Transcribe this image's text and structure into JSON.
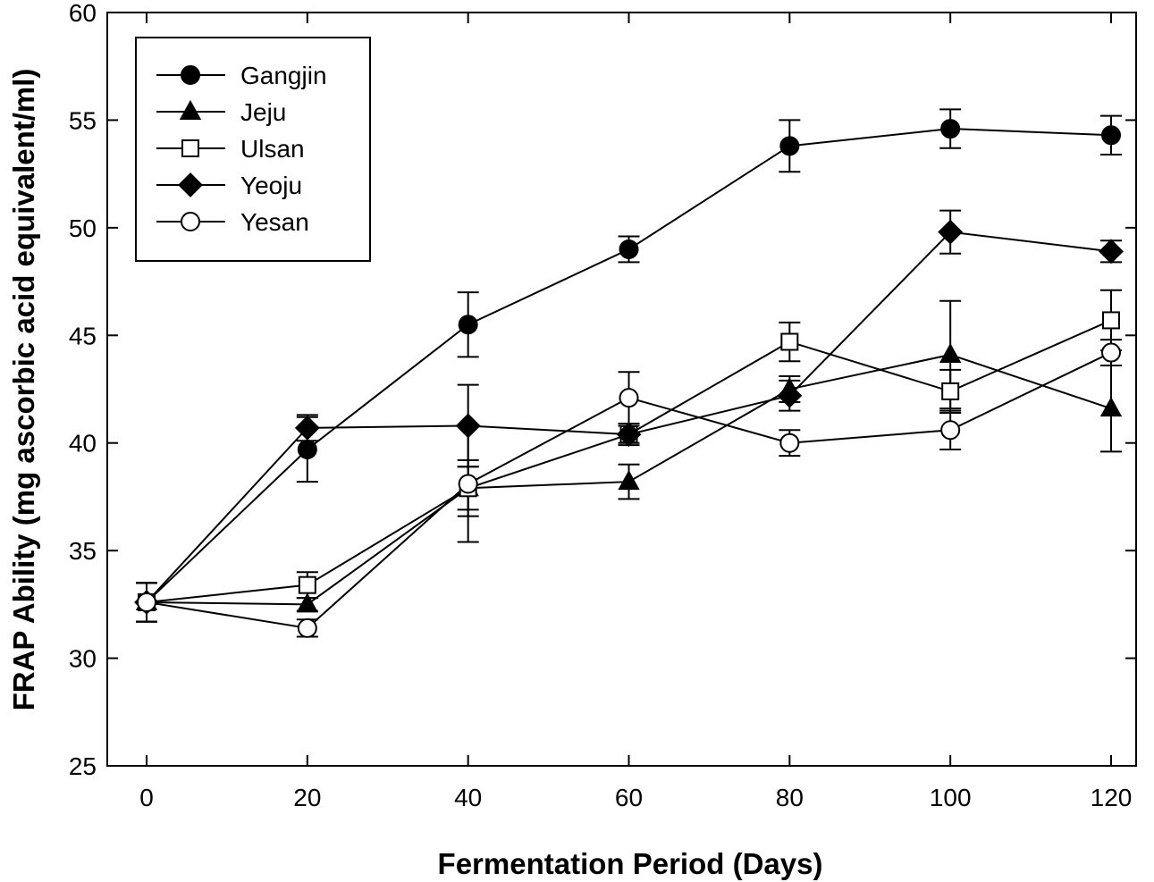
{
  "chart_data": {
    "type": "line",
    "title": "",
    "xlabel": "Fermentation Period (Days)",
    "ylabel": "FRAP Ability (mg ascorbic acid equivalent/ml)",
    "xlim": [
      -6,
      124
    ],
    "ylim": [
      25,
      60
    ],
    "xticks": [
      0,
      20,
      40,
      60,
      80,
      100,
      120
    ],
    "xtick_labels": [
      "0",
      "20",
      "40",
      "60",
      "80",
      "100",
      "120"
    ],
    "yticks": [
      25,
      30,
      35,
      40,
      45,
      50,
      55,
      60
    ],
    "ytick_labels": [
      "25",
      "30",
      "35",
      "40",
      "45",
      "50",
      "55",
      "60"
    ],
    "grid": false,
    "legend_position": "top-left",
    "x": [
      0,
      20,
      40,
      60,
      80,
      100,
      120
    ],
    "series": [
      {
        "name": "Gangjin",
        "marker": "circle",
        "filled": true,
        "values": [
          32.6,
          39.7,
          45.5,
          49.0,
          53.8,
          54.6,
          54.3
        ],
        "errors": [
          0.9,
          1.5,
          1.5,
          0.6,
          1.2,
          0.9,
          0.9
        ]
      },
      {
        "name": "Jeju",
        "marker": "triangle",
        "filled": true,
        "values": [
          32.6,
          32.5,
          37.9,
          38.2,
          42.5,
          44.1,
          41.6
        ],
        "errors": [
          0.9,
          0.3,
          1.0,
          0.8,
          0.6,
          2.5,
          2.0
        ]
      },
      {
        "name": "Ulsan",
        "marker": "square",
        "filled": false,
        "values": [
          32.6,
          33.4,
          37.9,
          40.4,
          44.7,
          42.4,
          45.7
        ],
        "errors": [
          0.9,
          0.6,
          1.3,
          0.4,
          0.9,
          1.0,
          1.4
        ]
      },
      {
        "name": "Yeoju",
        "marker": "diamond",
        "filled": true,
        "values": [
          32.6,
          40.7,
          40.8,
          40.4,
          42.2,
          49.8,
          48.9
        ],
        "errors": [
          0.9,
          0.6,
          1.9,
          0.5,
          0.7,
          1.0,
          0.5
        ]
      },
      {
        "name": "Yesan",
        "marker": "circle",
        "filled": false,
        "values": [
          32.6,
          31.4,
          38.1,
          42.1,
          40.0,
          40.6,
          44.2
        ],
        "errors": [
          0.9,
          0.4,
          2.7,
          1.2,
          0.6,
          0.9,
          0.6
        ]
      }
    ]
  }
}
